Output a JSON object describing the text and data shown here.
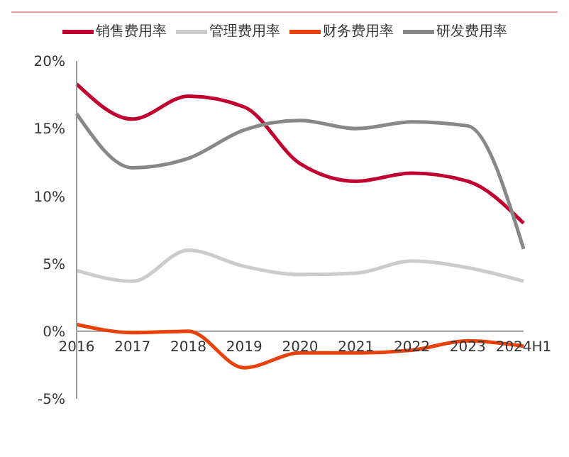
{
  "chart_data": {
    "type": "line",
    "categories": [
      "2016",
      "2017",
      "2018",
      "2019",
      "2020",
      "2021",
      "2022",
      "2023",
      "2024H1"
    ],
    "series": [
      {
        "name": "销售费用率",
        "color": "#c0002f",
        "values": [
          18.3,
          15.7,
          17.4,
          16.6,
          12.4,
          11.1,
          11.7,
          11.1,
          8.0
        ]
      },
      {
        "name": "管理费用率",
        "color": "#cccccc",
        "values": [
          4.5,
          3.7,
          6.0,
          4.8,
          4.2,
          4.3,
          5.2,
          4.7,
          3.7
        ]
      },
      {
        "name": "财务费用率",
        "color": "#e8420a",
        "values": [
          0.5,
          -0.1,
          0.0,
          -2.7,
          -1.6,
          -1.6,
          -1.4,
          -0.7,
          -1.1
        ]
      },
      {
        "name": "研发费用率",
        "color": "#888888",
        "values": [
          16.1,
          12.1,
          12.8,
          14.9,
          15.6,
          15.0,
          15.5,
          15.2,
          6.1
        ]
      }
    ],
    "ylim": [
      -5,
      20
    ],
    "yticks": [
      {
        "value": -5,
        "label": "-5%"
      },
      {
        "value": 0,
        "label": "0%"
      },
      {
        "value": 5,
        "label": "5%"
      },
      {
        "value": 10,
        "label": "10%"
      },
      {
        "value": 15,
        "label": "15%"
      },
      {
        "value": 20,
        "label": "20%"
      }
    ],
    "legend": "top",
    "grid": false,
    "marker": "none",
    "line_style": "solid"
  }
}
